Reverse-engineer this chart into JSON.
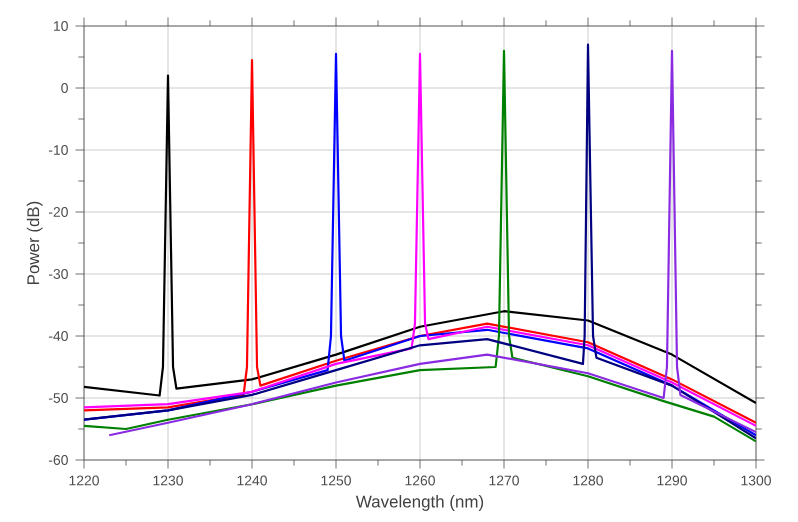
{
  "chart_data": {
    "type": "line",
    "xlabel": "Wavelength (nm)",
    "ylabel": "Power (dB)",
    "xlim": [
      1220,
      1300
    ],
    "xticks": [
      1220,
      1230,
      1240,
      1250,
      1260,
      1270,
      1280,
      1290,
      1300
    ],
    "ylim": [
      -60,
      10
    ],
    "yticks": [
      -60,
      -50,
      -40,
      -30,
      -20,
      -10,
      0,
      10
    ],
    "grid": true,
    "marker": "none",
    "line_style": "solid",
    "series": [
      {
        "color": "#000000",
        "x": [
          1220,
          1229,
          1229.4,
          1230,
          1230.6,
          1231,
          1240,
          1250,
          1260,
          1270,
          1280,
          1290,
          1300
        ],
        "values": [
          -48.2,
          -49.6,
          -45,
          2,
          -45,
          -48.5,
          -47,
          -43,
          -38.5,
          -36,
          -37.5,
          -43,
          -50.8
        ]
      },
      {
        "color": "#ff0000",
        "x": [
          1220,
          1230,
          1239,
          1239.4,
          1240,
          1240.6,
          1241,
          1250,
          1260,
          1268,
          1280,
          1290,
          1300
        ],
        "values": [
          -52,
          -51.5,
          -49.5,
          -45,
          4.5,
          -45,
          -48,
          -44,
          -40,
          -38,
          -41,
          -47,
          -54
        ]
      },
      {
        "color": "#0000ff",
        "x": [
          1220,
          1230,
          1240,
          1249,
          1249.4,
          1250,
          1250.6,
          1251,
          1260,
          1268,
          1280,
          1290,
          1300
        ],
        "values": [
          -53.5,
          -52,
          -49,
          -45.5,
          -40,
          5.5,
          -40,
          -44,
          -40,
          -39,
          -42,
          -48,
          -56
        ]
      },
      {
        "color": "#ff00ff",
        "x": [
          1220,
          1230,
          1240,
          1250,
          1259,
          1259.4,
          1260,
          1260.6,
          1261,
          1268,
          1280,
          1290,
          1300
        ],
        "values": [
          -51.5,
          -51,
          -49,
          -44.5,
          -42,
          -38,
          5.5,
          -38,
          -40.5,
          -38.5,
          -41.5,
          -47.5,
          -54.5
        ]
      },
      {
        "color": "#008000",
        "x": [
          1220,
          1225,
          1230,
          1240,
          1250,
          1260,
          1269,
          1269.4,
          1270,
          1270.6,
          1271,
          1280,
          1289,
          1295,
          1300
        ],
        "values": [
          -54.5,
          -55,
          -53.5,
          -51,
          -48,
          -45.5,
          -45,
          -40,
          6,
          -40,
          -43.5,
          -46.5,
          -50.5,
          -53,
          -57
        ]
      },
      {
        "color": "#000080",
        "x": [
          1220,
          1230,
          1240,
          1250,
          1260,
          1268,
          1279.4,
          1279.6,
          1280,
          1280.6,
          1281,
          1290,
          1300
        ],
        "values": [
          -53.5,
          -52,
          -49.5,
          -45.5,
          -41.5,
          -40.5,
          -44.5,
          -40,
          7,
          -40,
          -43.5,
          -48,
          -56.5
        ]
      },
      {
        "color": "#8a2be2",
        "x": [
          1223,
          1230,
          1240,
          1250,
          1260,
          1268,
          1280,
          1289,
          1289.4,
          1290,
          1290.6,
          1291,
          1300
        ],
        "values": [
          -56,
          -54,
          -51,
          -47.5,
          -44.5,
          -43,
          -46,
          -50,
          -45,
          6,
          -45,
          -49.5,
          -55.5
        ]
      }
    ]
  }
}
